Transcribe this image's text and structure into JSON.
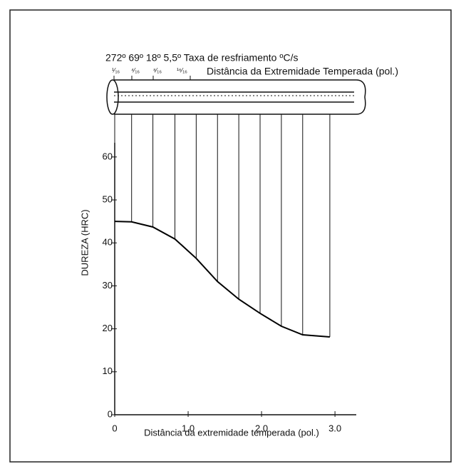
{
  "chart_data": {
    "type": "line",
    "annotations": [
      "272º 69º 18º 5,5º Taxa de resfriamento ºC/s",
      "Distância da Extremidade Temperada (pol.)"
    ],
    "fractions": [
      "¹⁄₁₆",
      "⁴⁄₁₆",
      "⁸⁄₁₆",
      "¹⁶⁄₁₆"
    ],
    "x_label": "Distância da extremidade temperada (pol.)",
    "y_label": "DUREZA (HRC)",
    "x": [
      0,
      0.23,
      0.52,
      0.82,
      1.11,
      1.4,
      1.69,
      1.98,
      2.27,
      2.56,
      2.93
    ],
    "values": [
      45,
      44.9,
      43.7,
      40.9,
      36.4,
      31,
      26.9,
      23.6,
      20.6,
      18.6,
      18.1
    ],
    "color": "#000000",
    "xlim": [
      0,
      3.29
    ],
    "ylim": [
      0,
      63.3
    ],
    "xticks": [
      0,
      {
        "value": 1,
        "label": "1.0"
      },
      {
        "value": 2,
        "label": "2.0"
      },
      {
        "value": 3,
        "label": "3.0"
      }
    ],
    "yticks": [
      0,
      10,
      20,
      30,
      40,
      50,
      60
    ]
  }
}
